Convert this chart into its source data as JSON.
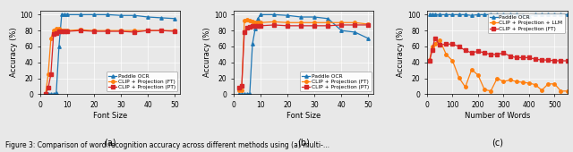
{
  "subplot_a": {
    "title": "(a)",
    "xlabel": "Font Size",
    "ylabel": "Accuracy (%)",
    "xlim": [
      0,
      52
    ],
    "ylim": [
      0,
      105
    ],
    "xticks": [
      0,
      10,
      20,
      30,
      40,
      50
    ],
    "yticks": [
      0,
      20,
      40,
      60,
      80,
      100
    ],
    "paddle_ocr_x": [
      2,
      3,
      4,
      5,
      6,
      7,
      8,
      9,
      10,
      15,
      20,
      25,
      30,
      35,
      40,
      45,
      50
    ],
    "paddle_ocr_y": [
      0,
      0,
      0,
      0,
      2,
      60,
      100,
      100,
      100,
      100,
      100,
      100,
      99,
      99,
      97,
      96,
      95
    ],
    "clip_ft_x": [
      2,
      3,
      4,
      5,
      6,
      7,
      8,
      9,
      10,
      15,
      20,
      25,
      30,
      35,
      40,
      45,
      50
    ],
    "clip_ft_y": [
      0,
      25,
      70,
      80,
      82,
      82,
      80,
      80,
      80,
      81,
      80,
      80,
      80,
      80,
      80,
      80,
      80
    ],
    "clip_pt_x": [
      2,
      3,
      4,
      5,
      6,
      7,
      8,
      9,
      10,
      15,
      20,
      25,
      30,
      35,
      40,
      45,
      50
    ],
    "clip_pt_y": [
      0,
      8,
      25,
      76,
      77,
      79,
      79,
      79,
      79,
      80,
      79,
      79,
      79,
      78,
      80,
      80,
      79
    ]
  },
  "subplot_b": {
    "title": "(b)",
    "xlabel": "Font Size",
    "ylabel": "Accuracy (%)",
    "xlim": [
      0,
      52
    ],
    "ylim": [
      0,
      105
    ],
    "xticks": [
      0,
      10,
      20,
      30,
      40,
      50
    ],
    "yticks": [
      0,
      20,
      40,
      60,
      80,
      100
    ],
    "paddle_ocr_x": [
      2,
      3,
      4,
      5,
      6,
      7,
      8,
      9,
      10,
      15,
      20,
      25,
      30,
      35,
      40,
      45,
      50
    ],
    "paddle_ocr_y": [
      0,
      0,
      0,
      0,
      1,
      63,
      82,
      95,
      100,
      100,
      99,
      97,
      97,
      95,
      80,
      78,
      70
    ],
    "clip_ft_x": [
      2,
      3,
      4,
      5,
      6,
      7,
      8,
      9,
      10,
      15,
      20,
      25,
      30,
      35,
      40,
      45,
      50
    ],
    "clip_ft_y": [
      5,
      5,
      93,
      94,
      92,
      91,
      90,
      90,
      90,
      91,
      90,
      90,
      90,
      90,
      90,
      90,
      88
    ],
    "clip_pt_x": [
      2,
      3,
      4,
      5,
      6,
      7,
      8,
      9,
      10,
      15,
      20,
      25,
      30,
      35,
      40,
      45,
      50
    ],
    "clip_pt_y": [
      8,
      10,
      78,
      84,
      85,
      86,
      86,
      86,
      86,
      87,
      86,
      86,
      86,
      86,
      87,
      87,
      87
    ]
  },
  "subplot_c": {
    "title": "(c)",
    "xlabel": "Number of Words",
    "ylabel": "Accuracy (%)",
    "xlim": [
      0,
      550
    ],
    "ylim": [
      0,
      105
    ],
    "xticks": [
      0,
      100,
      200,
      300,
      400,
      500
    ],
    "yticks": [
      0,
      20,
      40,
      60,
      80,
      100
    ],
    "paddle_ocr_x": [
      10,
      20,
      30,
      50,
      75,
      100,
      125,
      150,
      175,
      200,
      225,
      250,
      275,
      300,
      325,
      350,
      375,
      400,
      425,
      450,
      475,
      500,
      525,
      550
    ],
    "paddle_ocr_y": [
      100,
      100,
      100,
      100,
      100,
      100,
      100,
      100,
      99,
      100,
      100,
      100,
      100,
      100,
      100,
      100,
      99,
      98,
      100,
      100,
      100,
      100,
      100,
      100
    ],
    "clip_llm_x": [
      10,
      20,
      30,
      50,
      75,
      100,
      125,
      150,
      175,
      200,
      225,
      250,
      275,
      300,
      325,
      350,
      375,
      400,
      425,
      450,
      475,
      500,
      525,
      550
    ],
    "clip_llm_y": [
      43,
      60,
      63,
      68,
      50,
      42,
      21,
      9,
      31,
      24,
      6,
      4,
      20,
      16,
      18,
      16,
      15,
      14,
      12,
      5,
      13,
      13,
      4,
      4
    ],
    "clip_ft_x": [
      10,
      20,
      30,
      50,
      75,
      100,
      125,
      150,
      175,
      200,
      225,
      250,
      275,
      300,
      325,
      350,
      375,
      400,
      425,
      450,
      475,
      500,
      525,
      550
    ],
    "clip_ft_y": [
      42,
      55,
      70,
      62,
      63,
      63,
      60,
      55,
      52,
      54,
      52,
      50,
      50,
      52,
      48,
      46,
      46,
      46,
      44,
      43,
      43,
      42,
      42,
      42
    ]
  },
  "colors": {
    "paddle_ocr": "#1f77b4",
    "clip_ft": "#ff7f0e",
    "clip_pt": "#d62728",
    "clip_llm": "#ff7f0e"
  },
  "bg_color": "#e8e8e8",
  "legend_labels_ab": [
    "Paddle OCR",
    "CLIP + Projection (FT)",
    "CLIP + Projection (PT)"
  ],
  "legend_labels_c": [
    "Paddle OCR",
    "CLIP + Projection + LLM",
    "CLIP + Projection (FT)"
  ],
  "caption": "Figure 3: Comparison of word recognition accuracy across different methods using (a) multi-..."
}
